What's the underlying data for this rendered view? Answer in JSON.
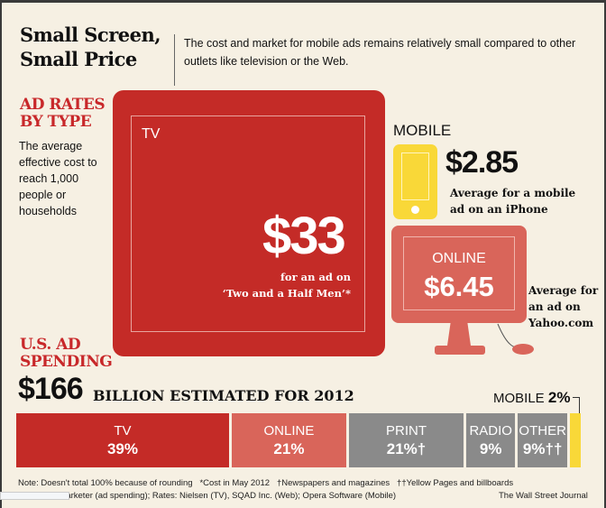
{
  "header": {
    "title_line1": "Small Screen,",
    "title_line2": "Small Price",
    "subtitle": "The cost and market for mobile ads remains relatively small compared to other outlets like television or the Web."
  },
  "ad_rates": {
    "heading_line1": "AD RATES",
    "heading_line2": "BY TYPE",
    "description": "The average effective cost to reach 1,000 people or households",
    "tv": {
      "label": "TV",
      "price": "$33",
      "note_line1": "for an ad on",
      "note_line2": "‘Two and a Half Men’*"
    },
    "mobile": {
      "label": "MOBILE",
      "price": "$2.85",
      "note_line1": "Average for a mobile",
      "note_line2": "ad on an iPhone"
    },
    "online": {
      "label": "ONLINE",
      "price": "$6.45",
      "note_line1": "Average for",
      "note_line2": "an ad on",
      "note_line3": "Yahoo.com"
    }
  },
  "spending": {
    "heading_line1": "U.S. AD",
    "heading_line2": "SPENDING",
    "total": "$166",
    "total_label": "BILLION ESTIMATED FOR 2012",
    "mobile_label": "MOBILE",
    "mobile_pct": "2%"
  },
  "chart_data": {
    "type": "bar",
    "orientation": "horizontal-stacked",
    "title": "$166 BILLION ESTIMATED FOR 2012",
    "unit": "percent",
    "categories": [
      "TV",
      "ONLINE",
      "PRINT",
      "RADIO",
      "OTHER",
      "MOBILE"
    ],
    "values": [
      39,
      21,
      21,
      9,
      9,
      2
    ],
    "labels": [
      "39%",
      "21%",
      "21%†",
      "9%",
      "9%††",
      "2%"
    ],
    "colors": [
      "#c42b27",
      "#d9655a",
      "#8a8a8a",
      "#8a8a8a",
      "#8a8a8a",
      "#f9d838"
    ]
  },
  "footer": {
    "note": "Note: Doesn't total 100% because of rounding   *Cost in May 2012   †Newspapers and magazines   ††Yellow Pages and billboards",
    "sources": "Sources: eMarketer (ad spending); Rates: Nielsen (TV), SQAD Inc. (Web); Opera Software (Mobile)",
    "credit": "The Wall Street Journal"
  }
}
